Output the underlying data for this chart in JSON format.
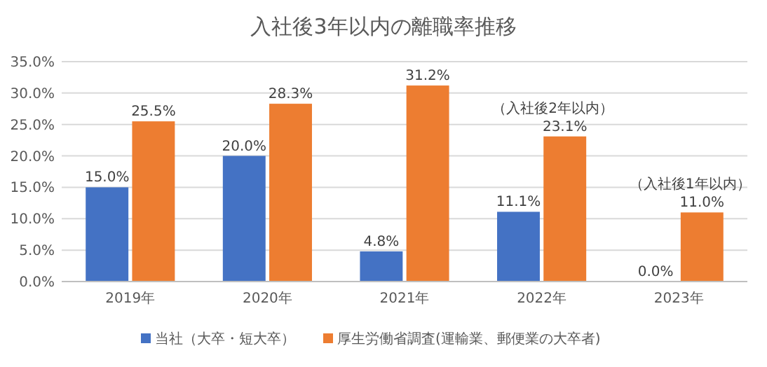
{
  "chart_data": {
    "type": "bar",
    "title": "入社後3年以内の離職率推移",
    "categories": [
      "2019年",
      "2020年",
      "2021年",
      "2022年",
      "2023年"
    ],
    "series": [
      {
        "name": "当社（大卒・短大卒）",
        "color": "#4472c4",
        "values": [
          15.0,
          20.0,
          4.8,
          11.1,
          0.0
        ],
        "value_labels": [
          "15.0%",
          "20.0%",
          "4.8%",
          "11.1%",
          "0.0%"
        ]
      },
      {
        "name": "厚生労働省調査(運輸業、郵便業の大卒者)",
        "color": "#ed7d31",
        "values": [
          25.5,
          28.3,
          31.2,
          23.1,
          11.0
        ],
        "value_labels": [
          "25.5%",
          "28.3%",
          "31.2%",
          "23.1%",
          "11.0%"
        ]
      }
    ],
    "ylim": [
      0,
      35
    ],
    "yticks": [
      {
        "value": 0,
        "label": "0.0%"
      },
      {
        "value": 5,
        "label": "5.0%"
      },
      {
        "value": 10,
        "label": "10.0%"
      },
      {
        "value": 15,
        "label": "15.0%"
      },
      {
        "value": 20,
        "label": "20.0%"
      },
      {
        "value": 25,
        "label": "25.0%"
      },
      {
        "value": 30,
        "label": "30.0%"
      },
      {
        "value": 35,
        "label": "35.0%"
      }
    ],
    "grid": "y",
    "legend": "bottom",
    "annotations": [
      {
        "text": "（入社後2年以内）",
        "x": "2022年",
        "y": 23.1
      },
      {
        "text": "（入社後1年以内）",
        "x": "2023年",
        "y": 11.0
      }
    ]
  }
}
